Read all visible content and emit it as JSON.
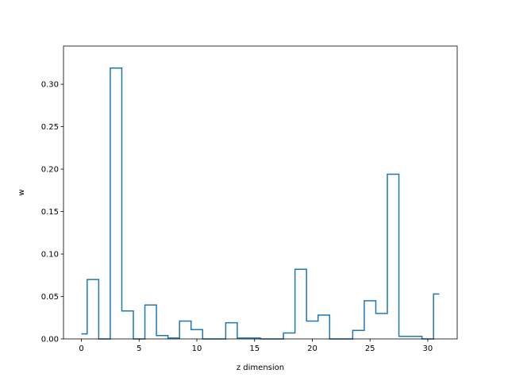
{
  "chart_data": {
    "type": "line",
    "style": "steps-mid",
    "xlabel": "z dimension",
    "ylabel": "w",
    "xlim": [
      -1.55,
      32.55
    ],
    "ylim": [
      0.0,
      0.345
    ],
    "x_ticks": [
      0,
      5,
      10,
      15,
      20,
      25,
      30
    ],
    "y_ticks": [
      0.0,
      0.05,
      0.1,
      0.15,
      0.2,
      0.25,
      0.3
    ],
    "x": [
      0,
      1,
      2,
      3,
      4,
      5,
      6,
      7,
      8,
      9,
      10,
      11,
      12,
      13,
      14,
      15,
      16,
      17,
      18,
      19,
      20,
      21,
      22,
      23,
      24,
      25,
      26,
      27,
      28,
      29,
      30,
      31
    ],
    "series": [
      {
        "values": [
          0.006,
          0.07,
          0.0,
          0.319,
          0.033,
          0.0,
          0.04,
          0.004,
          0.001,
          0.021,
          0.011,
          0.0,
          0.0,
          0.019,
          0.001,
          0.001,
          0.0,
          0.0,
          0.007,
          0.082,
          0.021,
          0.028,
          0.0,
          0.0,
          0.01,
          0.045,
          0.03,
          0.194,
          0.003,
          0.003,
          0.0,
          0.053
        ],
        "color": "#1f77b4"
      }
    ],
    "grid": false,
    "legend": "none"
  }
}
